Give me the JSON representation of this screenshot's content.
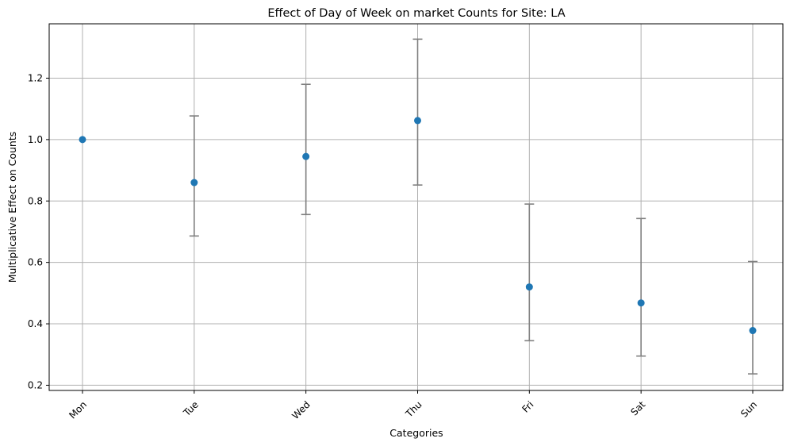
{
  "chart_data": {
    "type": "scatter",
    "title": "Effect of Day of Week on market Counts for Site: LA",
    "xlabel": "Categories",
    "ylabel": "Multiplicative Effect on Counts",
    "categories": [
      "Mon",
      "Tue",
      "Wed",
      "Thu",
      "Fri",
      "Sat",
      "Sun"
    ],
    "values": [
      1.0,
      0.86,
      0.945,
      1.062,
      0.52,
      0.468,
      0.378
    ],
    "error_low": [
      1.0,
      0.686,
      0.756,
      0.852,
      0.345,
      0.295,
      0.237
    ],
    "error_high": [
      1.0,
      1.077,
      1.18,
      1.327,
      0.79,
      0.743,
      0.603
    ],
    "ylim": [
      0.183,
      1.377
    ],
    "yticks": [
      0.2,
      0.4,
      0.6,
      0.8,
      1.0,
      1.2
    ],
    "ytick_labels": [
      "0.2",
      "0.4",
      "0.6",
      "0.8",
      "1.0",
      "1.2"
    ],
    "grid": true,
    "xtick_rotation": 45,
    "colors": {
      "marker": "#1f77b4",
      "errorbar": "#808080",
      "grid": "#b0b0b0",
      "axes": "#000000"
    }
  }
}
